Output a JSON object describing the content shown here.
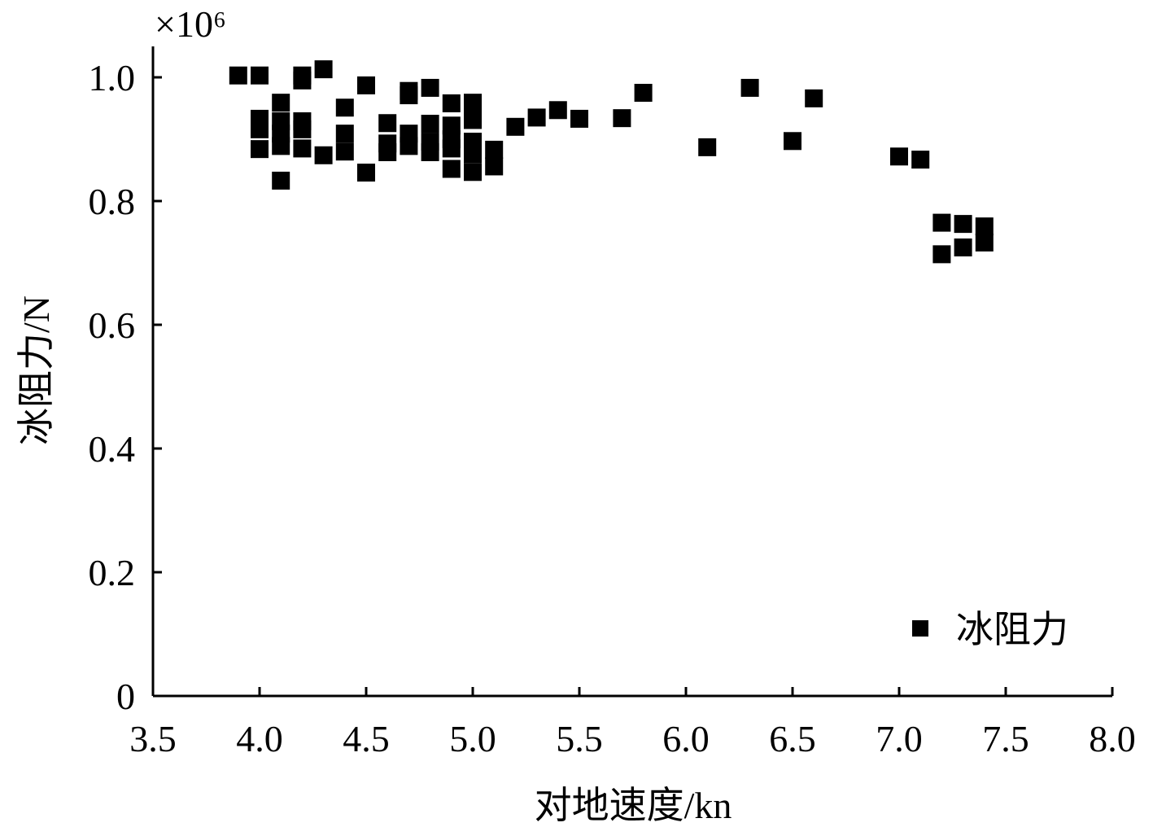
{
  "chart_data": {
    "type": "scatter",
    "x_label": "对地速度/kn",
    "y_label": "冰阻力/N",
    "y_multiplier": "×10⁶",
    "xlim": [
      3.5,
      8.0
    ],
    "xticks": [
      3.5,
      {
        "value": 4,
        "label": "4.0"
      },
      4.5,
      {
        "value": 5,
        "label": "5.0"
      },
      5.5,
      {
        "value": 6,
        "label": "6.0"
      },
      6.5,
      {
        "value": 7,
        "label": "7.0"
      },
      7.5,
      {
        "value": 8,
        "label": "8.0"
      }
    ],
    "ylim": [
      0,
      1.05
    ],
    "yticks": [
      0,
      0.2,
      0.4,
      0.6,
      0.8,
      {
        "value": 1,
        "label": "1.0"
      }
    ],
    "legend": "bottom-right",
    "series": [
      {
        "name": "冰阻力",
        "color": "#000000",
        "x": [
          3.9,
          4.0,
          4.0,
          4.0,
          4.0,
          4.1,
          4.1,
          4.1,
          4.1,
          4.1,
          4.2,
          4.2,
          4.2,
          4.2,
          4.2,
          4.3,
          4.3,
          4.4,
          4.4,
          4.4,
          4.5,
          4.5,
          4.6,
          4.6,
          4.6,
          4.7,
          4.7,
          4.7,
          4.7,
          4.8,
          4.8,
          4.8,
          4.8,
          4.9,
          4.9,
          4.9,
          4.9,
          4.9,
          5.0,
          5.0,
          5.0,
          5.0,
          5.0,
          5.1,
          5.1,
          5.2,
          5.3,
          5.4,
          5.5,
          5.7,
          5.8,
          6.1,
          6.3,
          6.5,
          6.6,
          7.0,
          7.1,
          7.2,
          7.2,
          7.3,
          7.3,
          7.4,
          7.4
        ],
        "values": [
          1.003,
          1.003,
          0.933,
          0.916,
          0.884,
          0.959,
          0.929,
          0.909,
          0.889,
          0.833,
          1.003,
          0.995,
          0.929,
          0.916,
          0.885,
          1.013,
          0.874,
          0.951,
          0.909,
          0.88,
          0.987,
          0.846,
          0.926,
          0.893,
          0.879,
          0.978,
          0.971,
          0.909,
          0.889,
          0.983,
          0.925,
          0.896,
          0.879,
          0.958,
          0.922,
          0.9,
          0.885,
          0.852,
          0.959,
          0.931,
          0.896,
          0.876,
          0.847,
          0.883,
          0.856,
          0.92,
          0.935,
          0.947,
          0.933,
          0.934,
          0.975,
          0.887,
          0.983,
          0.897,
          0.966,
          0.872,
          0.867,
          0.765,
          0.714,
          0.763,
          0.725,
          0.759,
          0.733
        ]
      }
    ]
  }
}
